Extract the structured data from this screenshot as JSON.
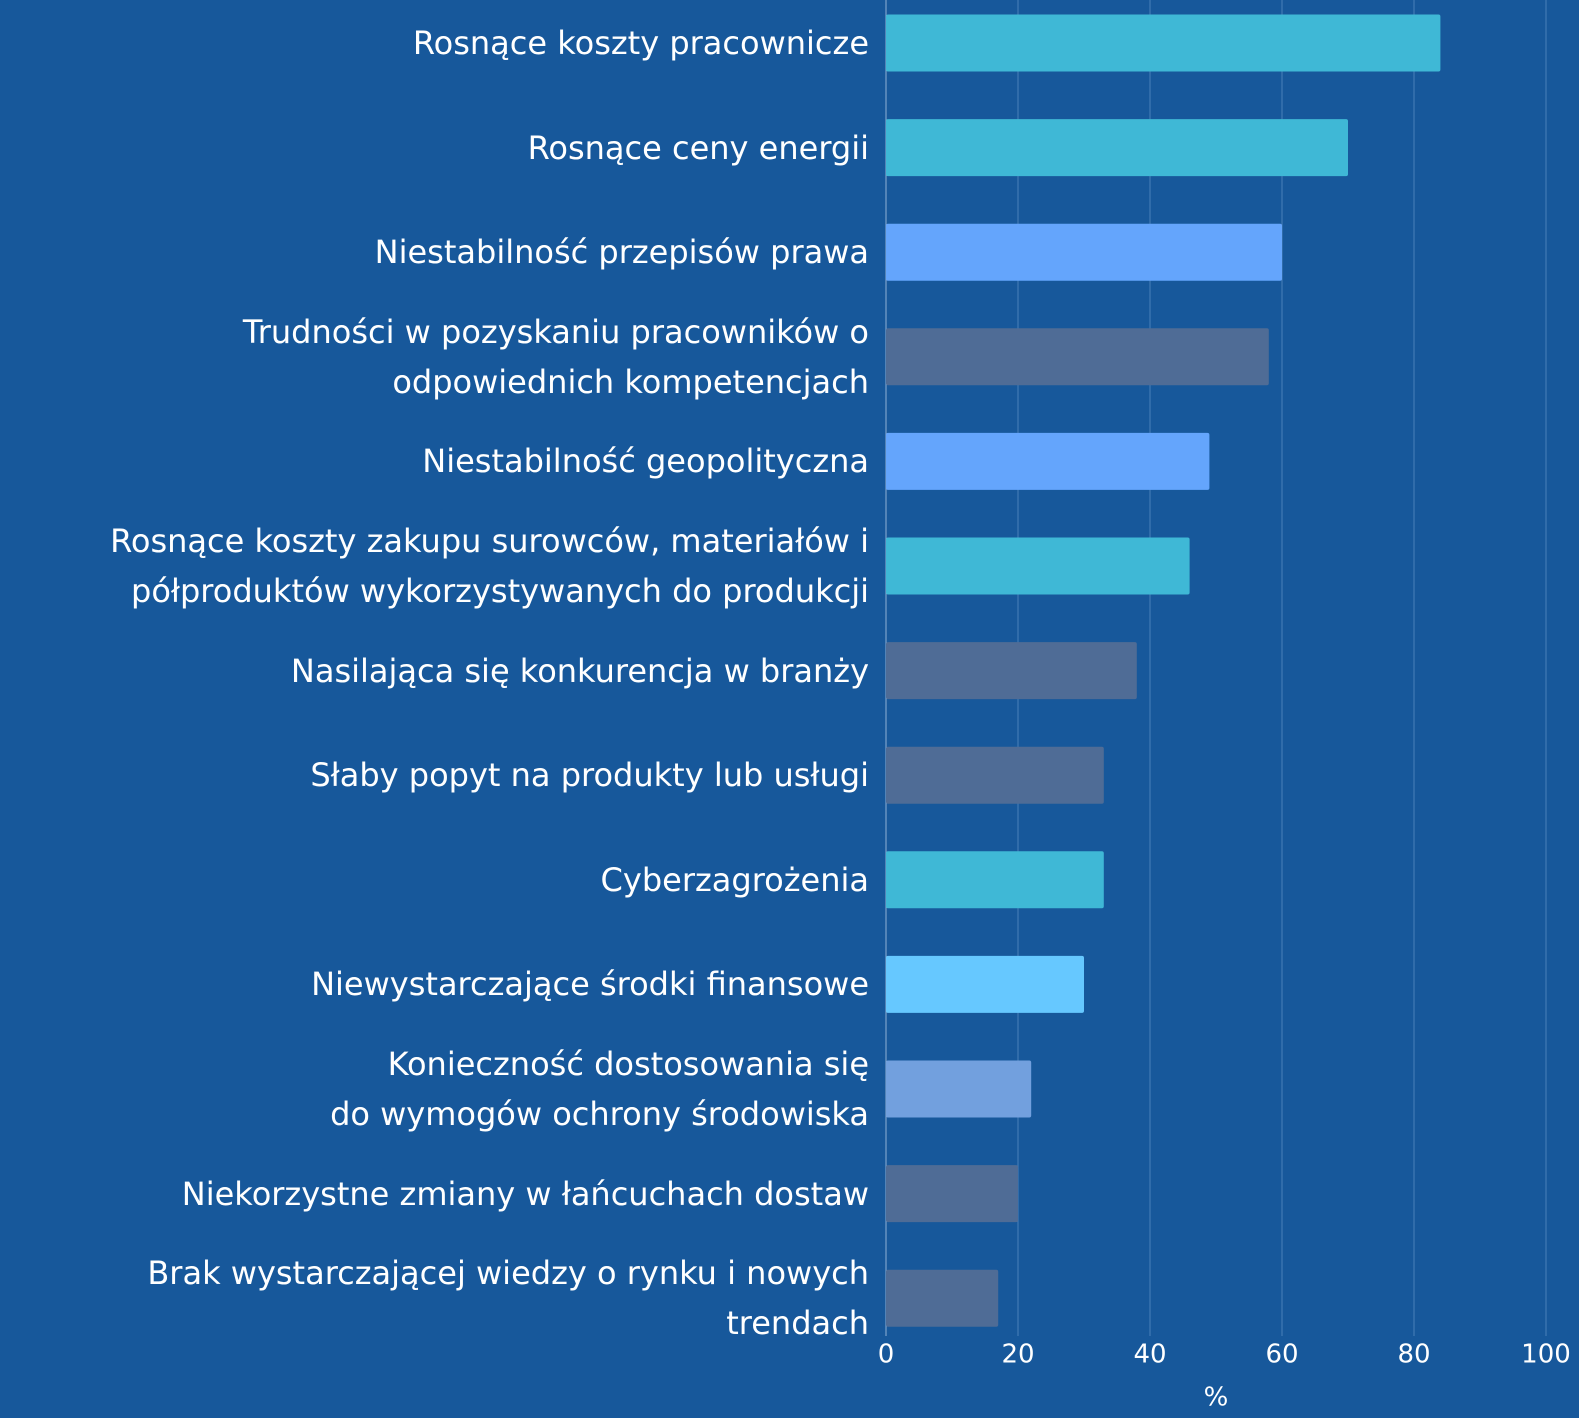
{
  "chart_data": {
    "type": "barh",
    "categories": [
      "Rosnące koszty pracownicze",
      "Rosnące ceny energii",
      "Niestabilność przepisów prawa",
      "Trudności w pozyskaniu pracowników o\nodpowiednich kompetencjach",
      "Niestabilność geopolityczna",
      "Rosnące koszty zakupu surowców, materiałów i\npółproduktów wykorzystywanych do produkcji",
      "Nasilająca się konkurencja w branży",
      "Słaby popyt na produkty lub usługi",
      "Cyberzagrożenia",
      "Niewystarczające środki finansowe",
      "Konieczność dostosowania się\ndo wymogów ochrony środowiska",
      "Niekorzystne zmiany w łańcuchach dostaw",
      "Brak wystarczającej wiedzy o rynku i nowych\ntrendach"
    ],
    "values": [
      84,
      70,
      60,
      58,
      49,
      46,
      38,
      33,
      33,
      30,
      22,
      20,
      17
    ],
    "colors": [
      "#3fb8d6",
      "#3fb8d6",
      "#64a5fc",
      "#4f6c96",
      "#64a5fc",
      "#3fb8d6",
      "#4f6c96",
      "#4f6c96",
      "#3fb8d6",
      "#66c8ff",
      "#72a0de",
      "#4f6c96",
      "#4f6c96"
    ],
    "xlabel": "%",
    "xlim": [
      0,
      100
    ],
    "xticks": [
      0,
      20,
      40,
      60,
      80,
      100
    ],
    "grid": true
  }
}
